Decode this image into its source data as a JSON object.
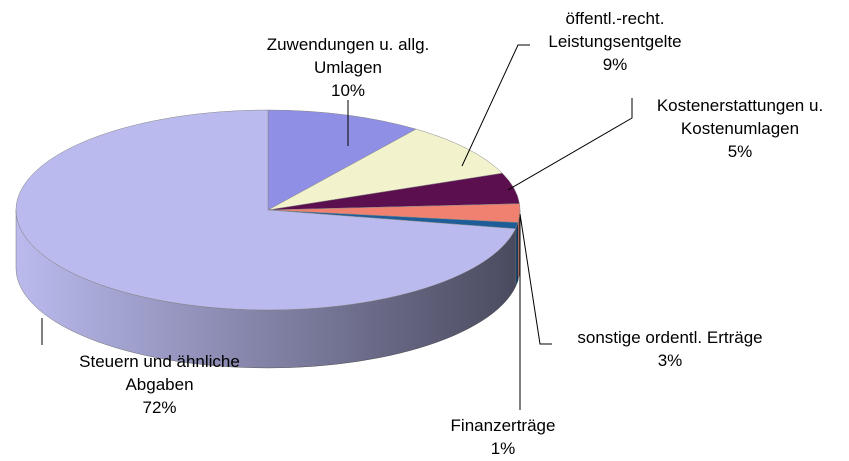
{
  "chart_data": {
    "type": "pie",
    "categories": [
      "Zuwendungen u. allg. Umlagen",
      "öffentl.-recht. Leistungsentgelte",
      "Kostenerstattungen u. Kostenumlagen",
      "sonstige ordentl. Erträge",
      "Finanzerträge",
      "Steuern und ähnliche Abgaben"
    ],
    "values": [
      10,
      9,
      5,
      3,
      1,
      72
    ],
    "value_labels": [
      "10%",
      "9%",
      "5%",
      "3%",
      "1%",
      "72%"
    ],
    "colors": [
      "#8f8fe6",
      "#f2f2cc",
      "#5c0f4f",
      "#f08070",
      "#1f5d99",
      "#babaee"
    ]
  }
}
